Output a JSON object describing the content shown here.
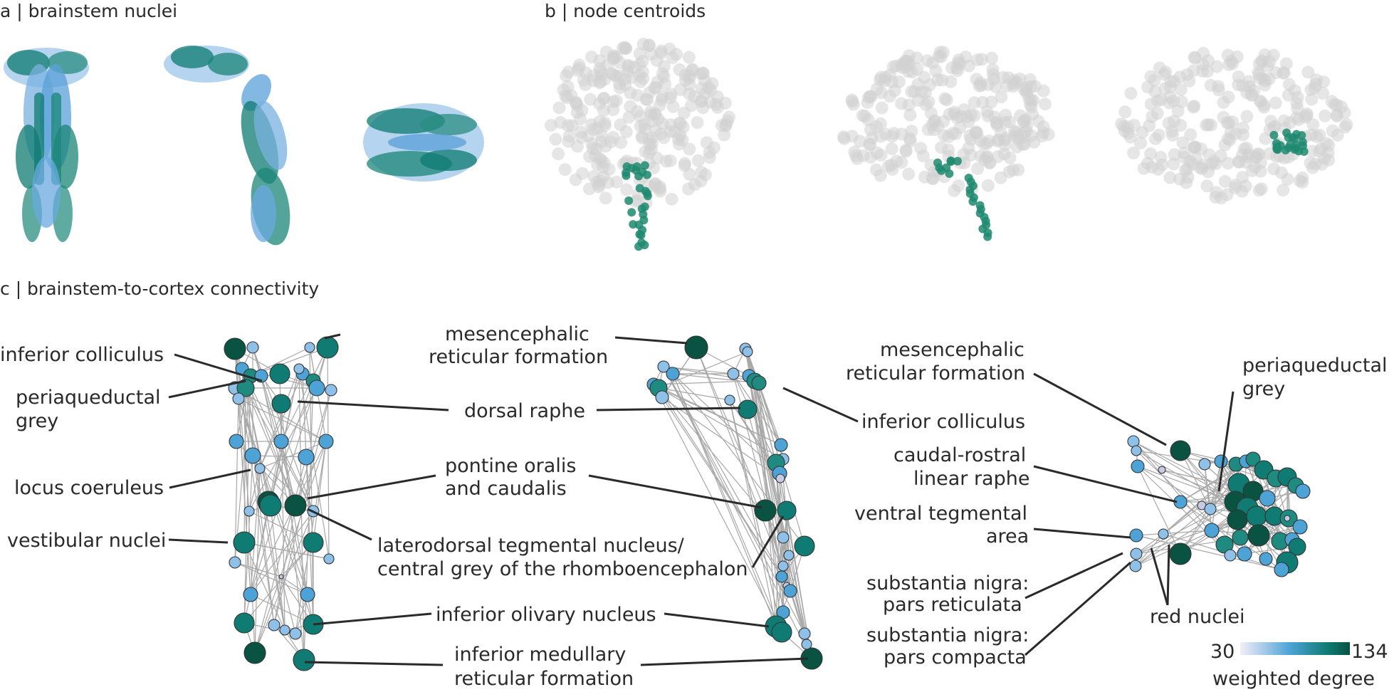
{
  "panels": {
    "a": "a | brainstem nuclei",
    "b": "b | node centroids",
    "c": "c | brainstem-to-cortex connectivity"
  },
  "labels": {
    "inferior_colliculus": "inferior colliculus",
    "periaqueductal_grey": [
      "periaqueductal",
      "grey"
    ],
    "locus_coeruleus": "locus coeruleus",
    "vestibular_nuclei": "vestibular nuclei",
    "mesencephalic_rf": [
      "mesencephalic",
      "reticular formation"
    ],
    "dorsal_raphe": "dorsal raphe",
    "pontine": [
      "pontine oralis",
      "and caudalis"
    ],
    "laterodorsal": [
      "laterodorsal tegmental nucleus/",
      "central grey of the rhomboencephalon"
    ],
    "inferior_olivary": "inferior olivary nucleus",
    "inferior_medullary_rf": [
      "inferior medullary",
      "reticular formation"
    ],
    "inferior_colliculus_2": "inferior colliculus",
    "mesencephalic_rf_2": [
      "mesencephalic",
      "reticular formation"
    ],
    "periaqueductal_grey_2": [
      "periaqueductal",
      "grey"
    ],
    "caudal_rostral": [
      "caudal-rostral",
      "linear raphe"
    ],
    "vta": [
      "ventral tegmental",
      "area"
    ],
    "sn_reticulata": [
      "substantia nigra:",
      "pars reticulata"
    ],
    "sn_compacta": [
      "substantia nigra:",
      "pars compacta"
    ],
    "red_nuclei": "red nuclei"
  },
  "colorbar": {
    "min_label": "30",
    "max_label": "134",
    "title": "weighted degree",
    "min": 30,
    "max": 134,
    "colors": [
      "#f4eef8",
      "#4ea3d6",
      "#0f7b72",
      "#0a5242"
    ]
  }
}
